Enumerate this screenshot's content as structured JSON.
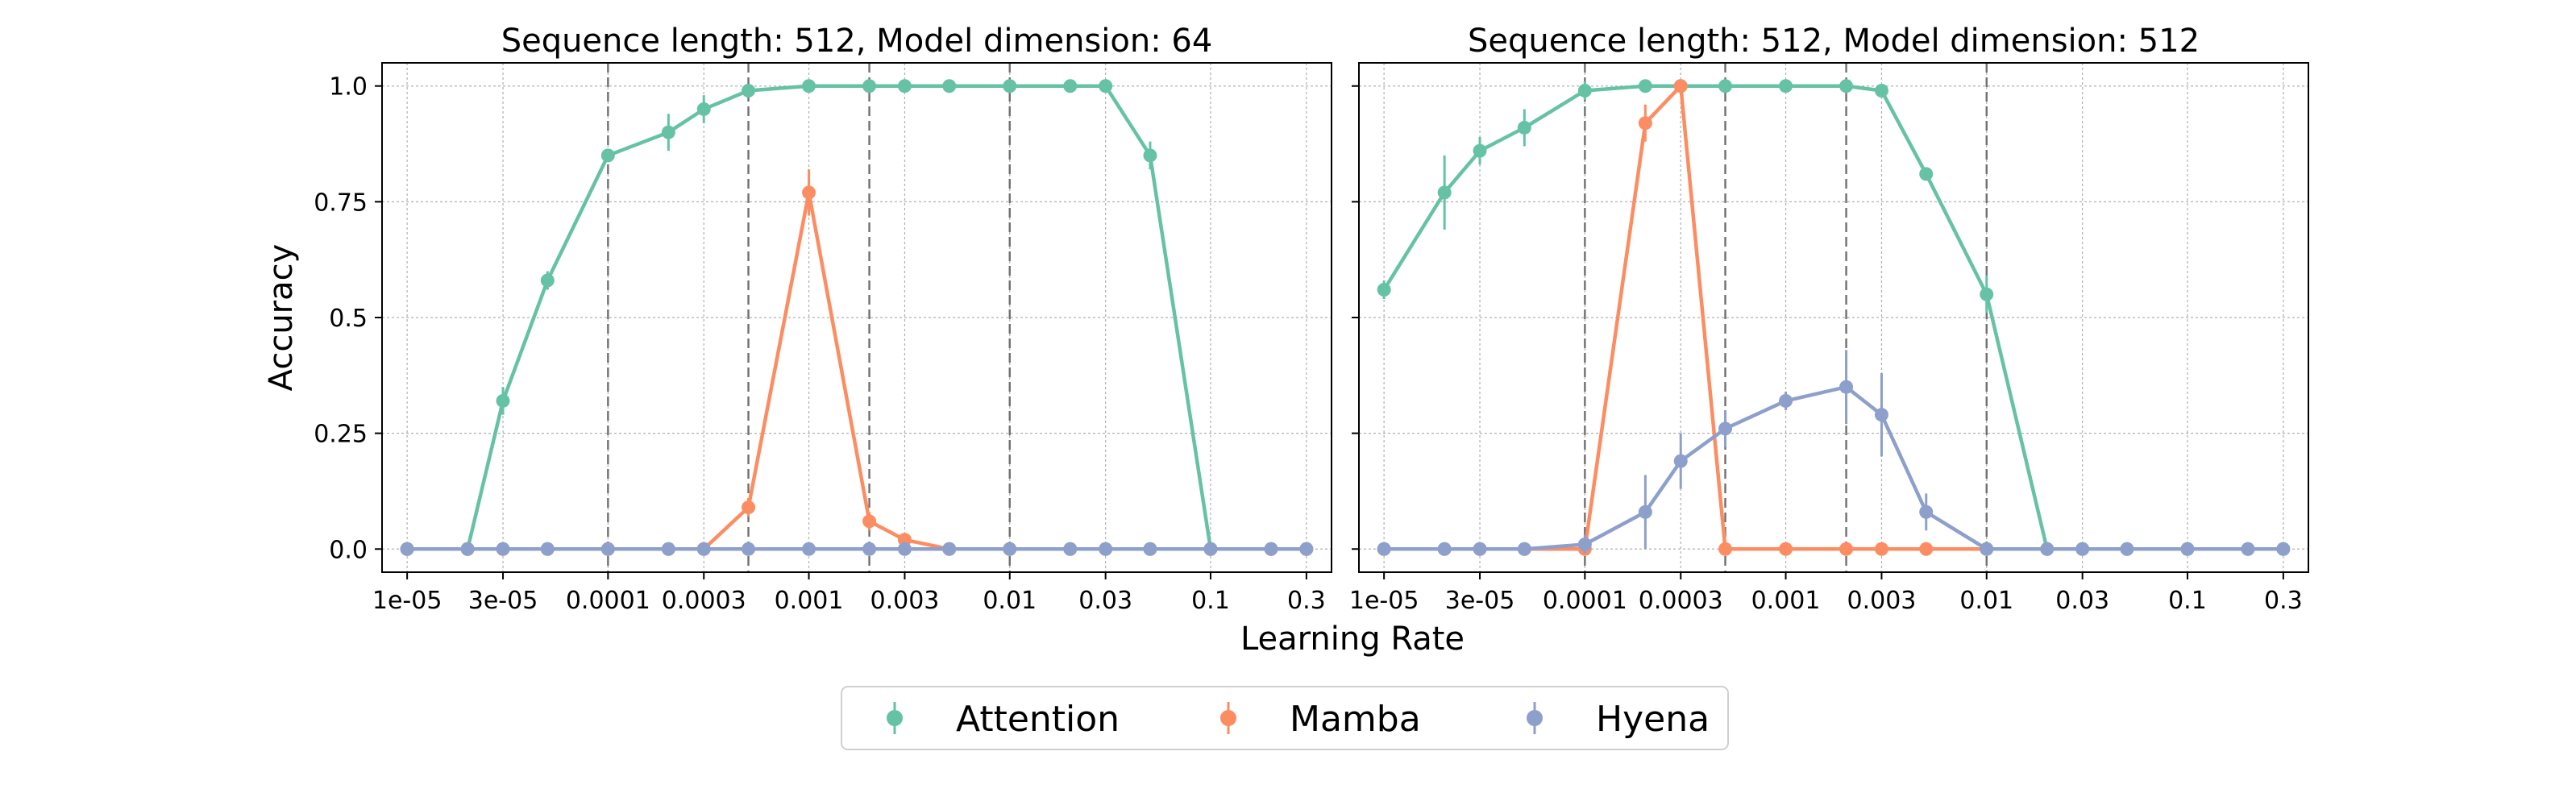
{
  "chart_data": {
    "type": "line",
    "xlabel": "Learning Rate",
    "ylabel": "Accuracy",
    "x_scale": "log",
    "xlim": [
      7.5e-06,
      0.4
    ],
    "ylim": [
      -0.05,
      1.05
    ],
    "x_ticks": [
      {
        "value": 1e-05,
        "label": "1e-05"
      },
      {
        "value": 3e-05,
        "label": "3e-05"
      },
      {
        "value": 0.0001,
        "label": "0.0001"
      },
      {
        "value": 0.0003,
        "label": "0.0003"
      },
      {
        "value": 0.001,
        "label": "0.001"
      },
      {
        "value": 0.003,
        "label": "0.003"
      },
      {
        "value": 0.01,
        "label": "0.01"
      },
      {
        "value": 0.03,
        "label": "0.03"
      },
      {
        "value": 0.1,
        "label": "0.1"
      },
      {
        "value": 0.3,
        "label": "0.3"
      }
    ],
    "y_ticks": [
      {
        "value": 0.0,
        "label": "0.0"
      },
      {
        "value": 0.25,
        "label": "0.25"
      },
      {
        "value": 0.5,
        "label": "0.5"
      },
      {
        "value": 0.75,
        "label": "0.75"
      },
      {
        "value": 1.0,
        "label": "1.0"
      }
    ],
    "grid": true,
    "legend": {
      "position": "bottom-center",
      "entries": [
        {
          "name": "Attention",
          "color": "#66c2a5"
        },
        {
          "name": "Mamba",
          "color": "#fc8d62"
        },
        {
          "name": "Hyena",
          "color": "#8da0cb"
        }
      ]
    },
    "panels": [
      {
        "title": "Sequence length: 512, Model dimension: 64",
        "vlines": [
          0.0001,
          0.0005,
          0.002,
          0.01
        ],
        "series": [
          {
            "name": "Attention",
            "color": "#66c2a5",
            "x": [
              1e-05,
              2e-05,
              3e-05,
              5e-05,
              0.0001,
              0.0002,
              0.0003,
              0.0005,
              0.001,
              0.002,
              0.003,
              0.005,
              0.01,
              0.02,
              0.03,
              0.05,
              0.1,
              0.2,
              0.3
            ],
            "y": [
              0,
              0,
              0.32,
              0.58,
              0.85,
              0.9,
              0.95,
              0.99,
              1.0,
              1.0,
              1.0,
              1.0,
              1.0,
              1.0,
              1.0,
              0.85,
              0,
              0,
              0
            ],
            "err": [
              0,
              0,
              0.03,
              0.02,
              0.01,
              0.04,
              0.03,
              0.01,
              0,
              0,
              0,
              0,
              0,
              0,
              0,
              0.03,
              0,
              0,
              0
            ]
          },
          {
            "name": "Mamba",
            "color": "#fc8d62",
            "x": [
              1e-05,
              2e-05,
              3e-05,
              5e-05,
              0.0001,
              0.0002,
              0.0003,
              0.0005,
              0.001,
              0.002,
              0.003,
              0.005,
              0.01,
              0.02,
              0.03,
              0.05,
              0.1,
              0.2,
              0.3
            ],
            "y": [
              0,
              0,
              0,
              0,
              0,
              0,
              0,
              0.09,
              0.77,
              0.06,
              0.02,
              0,
              0,
              0,
              0,
              0,
              0,
              0,
              0
            ],
            "err": [
              0,
              0,
              0,
              0,
              0,
              0,
              0,
              0.02,
              0.05,
              0.02,
              0.01,
              0,
              0,
              0,
              0,
              0,
              0,
              0,
              0
            ]
          },
          {
            "name": "Hyena",
            "color": "#8da0cb",
            "x": [
              1e-05,
              2e-05,
              3e-05,
              5e-05,
              0.0001,
              0.0002,
              0.0003,
              0.0005,
              0.001,
              0.002,
              0.003,
              0.005,
              0.01,
              0.02,
              0.03,
              0.05,
              0.1,
              0.2,
              0.3
            ],
            "y": [
              0,
              0,
              0,
              0,
              0,
              0,
              0,
              0,
              0,
              0,
              0,
              0,
              0,
              0,
              0,
              0,
              0,
              0,
              0
            ],
            "err": [
              0,
              0,
              0,
              0,
              0,
              0,
              0,
              0,
              0,
              0,
              0,
              0,
              0,
              0,
              0,
              0,
              0,
              0,
              0
            ]
          }
        ]
      },
      {
        "title": "Sequence length: 512, Model dimension: 512",
        "vlines": [
          0.0001,
          0.0005,
          0.002,
          0.01
        ],
        "series": [
          {
            "name": "Attention",
            "color": "#66c2a5",
            "x": [
              1e-05,
              2e-05,
              3e-05,
              5e-05,
              0.0001,
              0.0002,
              0.0003,
              0.0005,
              0.001,
              0.002,
              0.003,
              0.005,
              0.01,
              0.02,
              0.03,
              0.05,
              0.1,
              0.2,
              0.3
            ],
            "y": [
              0.56,
              0.77,
              0.86,
              0.91,
              0.99,
              1.0,
              1.0,
              1.0,
              1.0,
              1.0,
              0.99,
              0.81,
              0.55,
              0,
              0,
              0,
              0,
              0,
              0
            ],
            "err": [
              0.02,
              0.08,
              0.03,
              0.04,
              0.02,
              0,
              0,
              0,
              0,
              0,
              0.01,
              0.01,
              0.04,
              0,
              0,
              0,
              0,
              0,
              0
            ]
          },
          {
            "name": "Mamba",
            "color": "#fc8d62",
            "x": [
              1e-05,
              2e-05,
              3e-05,
              5e-05,
              0.0001,
              0.0002,
              0.0003,
              0.0005,
              0.001,
              0.002,
              0.003,
              0.005,
              0.01
            ],
            "y": [
              0,
              0,
              0,
              0,
              0,
              0.92,
              1.0,
              0,
              0,
              0,
              0,
              0,
              0
            ],
            "err": [
              0,
              0,
              0,
              0,
              0,
              0.04,
              0,
              0,
              0,
              0,
              0,
              0,
              0
            ]
          },
          {
            "name": "Hyena",
            "color": "#8da0cb",
            "x": [
              1e-05,
              2e-05,
              3e-05,
              5e-05,
              0.0001,
              0.0002,
              0.0003,
              0.0005,
              0.001,
              0.002,
              0.003,
              0.005,
              0.01,
              0.02,
              0.03,
              0.05,
              0.1,
              0.2,
              0.3
            ],
            "y": [
              0,
              0,
              0,
              0,
              0.01,
              0.08,
              0.19,
              0.26,
              0.32,
              0.35,
              0.29,
              0.08,
              0,
              0,
              0,
              0,
              0,
              0,
              0
            ],
            "err": [
              0,
              0,
              0,
              0,
              0.02,
              0.08,
              0.06,
              0.04,
              0.02,
              0.08,
              0.09,
              0.04,
              0,
              0,
              0,
              0,
              0,
              0,
              0
            ]
          }
        ]
      }
    ]
  }
}
